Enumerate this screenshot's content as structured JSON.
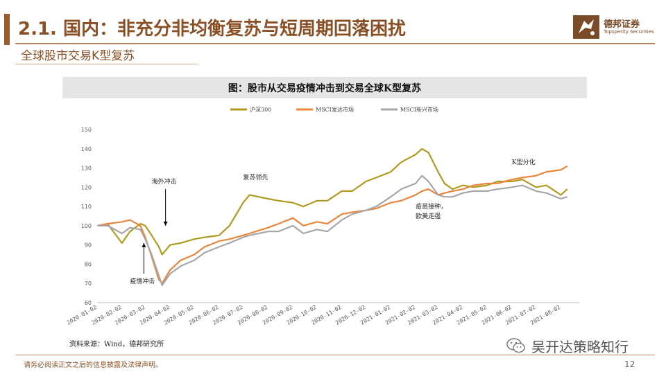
{
  "header": {
    "title": "2.1. 国内：非充分非均衡复苏与短周期回落困扰",
    "subtitle": "全球股市交易K型复苏"
  },
  "logo": {
    "name_cn": "德邦证券",
    "name_en": "Topsperity Securities",
    "icon": "company-logo-icon"
  },
  "chart_title": "图：股市从交易疫情冲击到交易全球K型复苏",
  "source": "资料来源：Wind，德邦研究所",
  "footer": {
    "disclaimer": "请务必阅读正文之后的信息披露及法律声明。",
    "page": "12"
  },
  "watermark": {
    "text": "吴开达策略知行",
    "icon": "wechat-icon"
  },
  "colors": {
    "accent": "#8a4f24",
    "hs300": "#b09a1e",
    "developed": "#e8853a",
    "emerging": "#a6a6a6"
  },
  "chart_data": {
    "type": "line",
    "title": "图：股市从交易疫情冲击到交易全球K型复苏",
    "xlabel": "",
    "ylabel": "",
    "ylim": [
      60,
      150
    ],
    "yticks": [
      60,
      70,
      80,
      90,
      100,
      110,
      120,
      130,
      140,
      150
    ],
    "grid": false,
    "legend_position": "top",
    "xticks": [
      "2020-01-02",
      "2020-02-02",
      "2020-03-02",
      "2020-04-02",
      "2020-05-02",
      "2020-06-02",
      "2020-07-02",
      "2020-08-02",
      "2020-09-02",
      "2020-10-02",
      "2020-11-02",
      "2020-12-02",
      "2021-01-02",
      "2021-02-02",
      "2021-03-02",
      "2021-04-02",
      "2021-05-02",
      "2021-06-02",
      "2021-07-02",
      "2021-08-02"
    ],
    "x": [
      "2020-01-02",
      "2020-01-15",
      "2020-02-02",
      "2020-02-12",
      "2020-02-25",
      "2020-03-02",
      "2020-03-10",
      "2020-03-19",
      "2020-03-23",
      "2020-04-02",
      "2020-04-15",
      "2020-05-02",
      "2020-05-15",
      "2020-06-02",
      "2020-06-15",
      "2020-07-02",
      "2020-07-10",
      "2020-08-02",
      "2020-08-15",
      "2020-09-02",
      "2020-09-15",
      "2020-10-02",
      "2020-10-15",
      "2020-11-02",
      "2020-11-15",
      "2020-12-02",
      "2020-12-15",
      "2021-01-02",
      "2021-01-15",
      "2021-02-02",
      "2021-02-10",
      "2021-02-18",
      "2021-03-02",
      "2021-03-10",
      "2021-03-20",
      "2021-04-02",
      "2021-04-15",
      "2021-05-02",
      "2021-05-15",
      "2021-06-02",
      "2021-06-15",
      "2021-07-02",
      "2021-07-15",
      "2021-08-02",
      "2021-08-10"
    ],
    "series": [
      {
        "name": "沪深300",
        "color": "#b09a1e",
        "values": [
          100,
          101,
          91,
          97,
          101,
          100,
          95,
          89,
          85,
          90,
          91,
          93,
          94,
          95,
          100,
          112,
          116,
          114,
          113,
          112,
          110,
          113,
          113,
          118,
          118,
          123,
          125,
          128,
          133,
          137,
          140,
          138,
          128,
          122,
          119,
          121,
          120,
          121,
          123,
          123,
          124,
          120,
          121,
          116,
          119
        ]
      },
      {
        "name": "MSCI发达市场",
        "color": "#e8853a",
        "values": [
          100,
          101,
          102,
          103,
          100,
          94,
          84,
          72,
          70,
          77,
          82,
          85,
          89,
          92,
          93,
          95,
          96,
          99,
          101,
          104,
          100,
          102,
          101,
          106,
          107,
          108,
          109,
          112,
          113,
          116,
          118,
          119,
          116,
          117,
          118,
          119,
          121,
          122,
          122,
          124,
          125,
          126,
          128,
          129,
          131
        ]
      },
      {
        "name": "MSCI新兴市场",
        "color": "#a6a6a6",
        "values": [
          100,
          100,
          96,
          99,
          98,
          93,
          85,
          74,
          69,
          75,
          79,
          82,
          86,
          89,
          91,
          94,
          95,
          97,
          97,
          100,
          96,
          98,
          97,
          103,
          106,
          108,
          110,
          115,
          119,
          122,
          126,
          123,
          116,
          115,
          115,
          117,
          118,
          118,
          119,
          120,
          121,
          118,
          117,
          114,
          115
        ]
      }
    ],
    "annotations": [
      {
        "text": "疫情冲击",
        "x": "2020-02-12",
        "y": 70,
        "arrow_to": 91
      },
      {
        "text": "海外冲击",
        "x": "2020-03-10",
        "y": 122,
        "arrow_to": 100
      },
      {
        "text": "复苏领先",
        "x": "2020-07-02",
        "y": 124
      },
      {
        "text": "疫苗接种，",
        "x": "2021-02-02",
        "y": 109
      },
      {
        "text": "欧美走强",
        "x": "2021-02-02",
        "y": 104
      },
      {
        "text": "K型分化",
        "x": "2021-06-02",
        "y": 132
      }
    ]
  }
}
